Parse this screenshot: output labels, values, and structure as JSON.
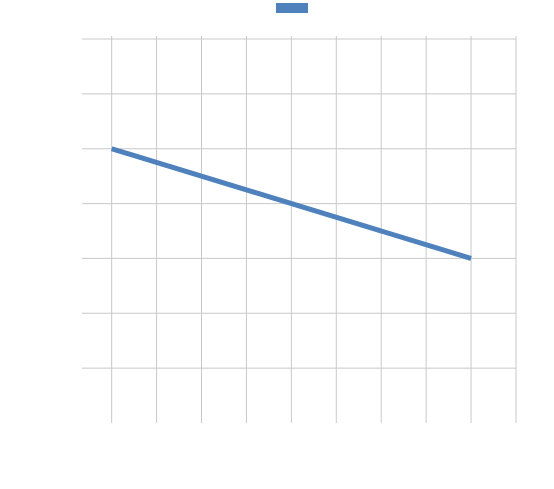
{
  "chart_data": {
    "type": "line",
    "title": "",
    "xlabel": "",
    "ylabel": "",
    "grid": true,
    "legend": "top-center",
    "x": [
      0,
      4,
      8
    ],
    "xlim": [
      -0.66,
      9
    ],
    "ylim": [
      0,
      7
    ],
    "series": [
      {
        "name": "",
        "color": "#4f81bd",
        "points": [
          [
            0,
            5.0
          ],
          [
            8,
            3.0
          ]
        ]
      }
    ]
  }
}
